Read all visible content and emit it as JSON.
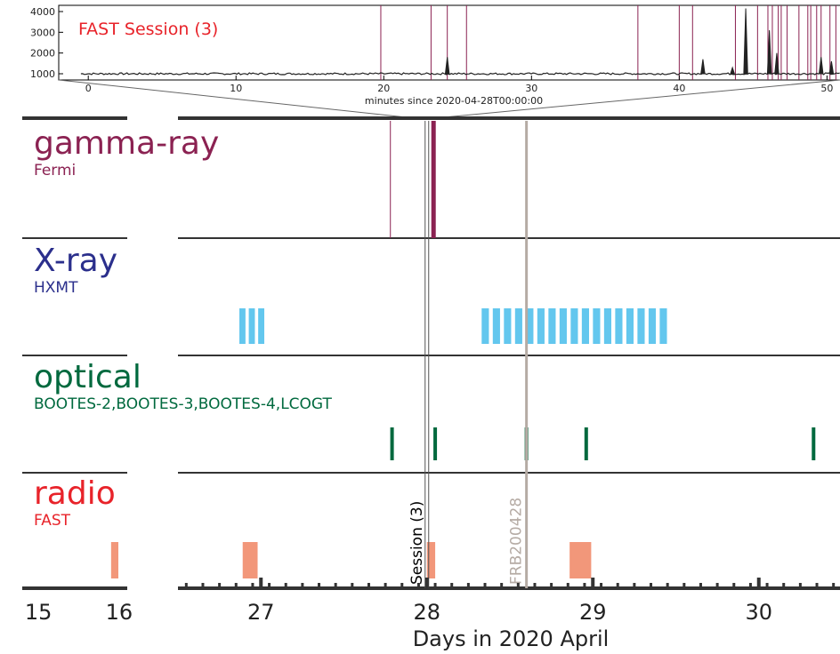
{
  "chart_data": [
    {
      "type": "line",
      "role": "inset",
      "title": "FAST Session (3)",
      "xlabel": "minutes since 2020-04-28T00:00:00",
      "xlim": [
        -2,
        51
      ],
      "ylim": [
        700,
        4300
      ],
      "x_ticks": [
        0,
        10,
        20,
        30,
        40,
        50
      ],
      "y_ticks": [
        1000,
        2000,
        3000,
        4000
      ],
      "baseline": 1000,
      "peaks": [
        {
          "x": 24.3,
          "y": 1800
        },
        {
          "x": 41.6,
          "y": 1700
        },
        {
          "x": 43.6,
          "y": 1300
        },
        {
          "x": 44.5,
          "y": 4150
        },
        {
          "x": 46.1,
          "y": 3100
        },
        {
          "x": 46.6,
          "y": 2000
        },
        {
          "x": 49.6,
          "y": 1800
        },
        {
          "x": 50.3,
          "y": 1600
        }
      ],
      "event_lines_x": [
        19.8,
        23.2,
        24.3,
        25.6,
        37.2,
        40.0,
        40.9,
        43.8,
        45.3,
        46.0,
        46.3,
        46.7,
        46.9,
        47.3,
        48.1,
        48.7,
        48.9,
        49.3,
        49.6,
        50.2,
        50.6
      ]
    },
    {
      "type": "timeline",
      "role": "main",
      "xlabel": "Days in 2020 April",
      "x_tick_labels": [
        "15",
        "16",
        "27",
        "28",
        "29",
        "30"
      ],
      "x_ticks": [
        15,
        16,
        27,
        28,
        29,
        30
      ],
      "axis_break": "between 16 and 26.5",
      "xlim_left": [
        14.8,
        16.1
      ],
      "xlim_right": [
        26.5,
        30.5
      ],
      "vertical_markers": [
        {
          "label": "Session (3)",
          "x": 28.0,
          "color": "#000000"
        },
        {
          "label": "FRB200428",
          "x": 28.6,
          "color": "#b5aba4"
        }
      ],
      "panels": [
        {
          "band": "gamma-ray",
          "instrument": "Fermi",
          "color": "#8b2252",
          "events": [
            {
              "x": 27.78,
              "kind": "line"
            },
            {
              "x": 28.04,
              "kind": "thick"
            }
          ]
        },
        {
          "band": "X-ray",
          "instrument": "HXMT",
          "color": "#2b2f8c",
          "bar_color": "#63c7ee",
          "bar_groups": [
            {
              "start": 26.87,
              "end": 27.04,
              "count": 3
            },
            {
              "start": 28.33,
              "end": 29.47,
              "count": 17
            }
          ],
          "events": [
            {
              "x": 28.6,
              "kind": "line"
            }
          ]
        },
        {
          "band": "optical",
          "instrument": "BOOTES-2,BOOTES-3,BOOTES-4,LCOGT",
          "color": "#00693e",
          "marks": [
            27.79,
            28.05,
            28.6,
            28.96,
            30.33
          ]
        },
        {
          "band": "radio",
          "instrument": "FAST",
          "color": "#e8232a",
          "block_color": "#f2977a",
          "blocks": [
            {
              "start": 15.9,
              "end": 15.99
            },
            {
              "start": 26.89,
              "end": 26.98
            },
            {
              "start": 28.0,
              "end": 28.05
            },
            {
              "start": 28.86,
              "end": 28.99
            }
          ]
        }
      ]
    }
  ]
}
